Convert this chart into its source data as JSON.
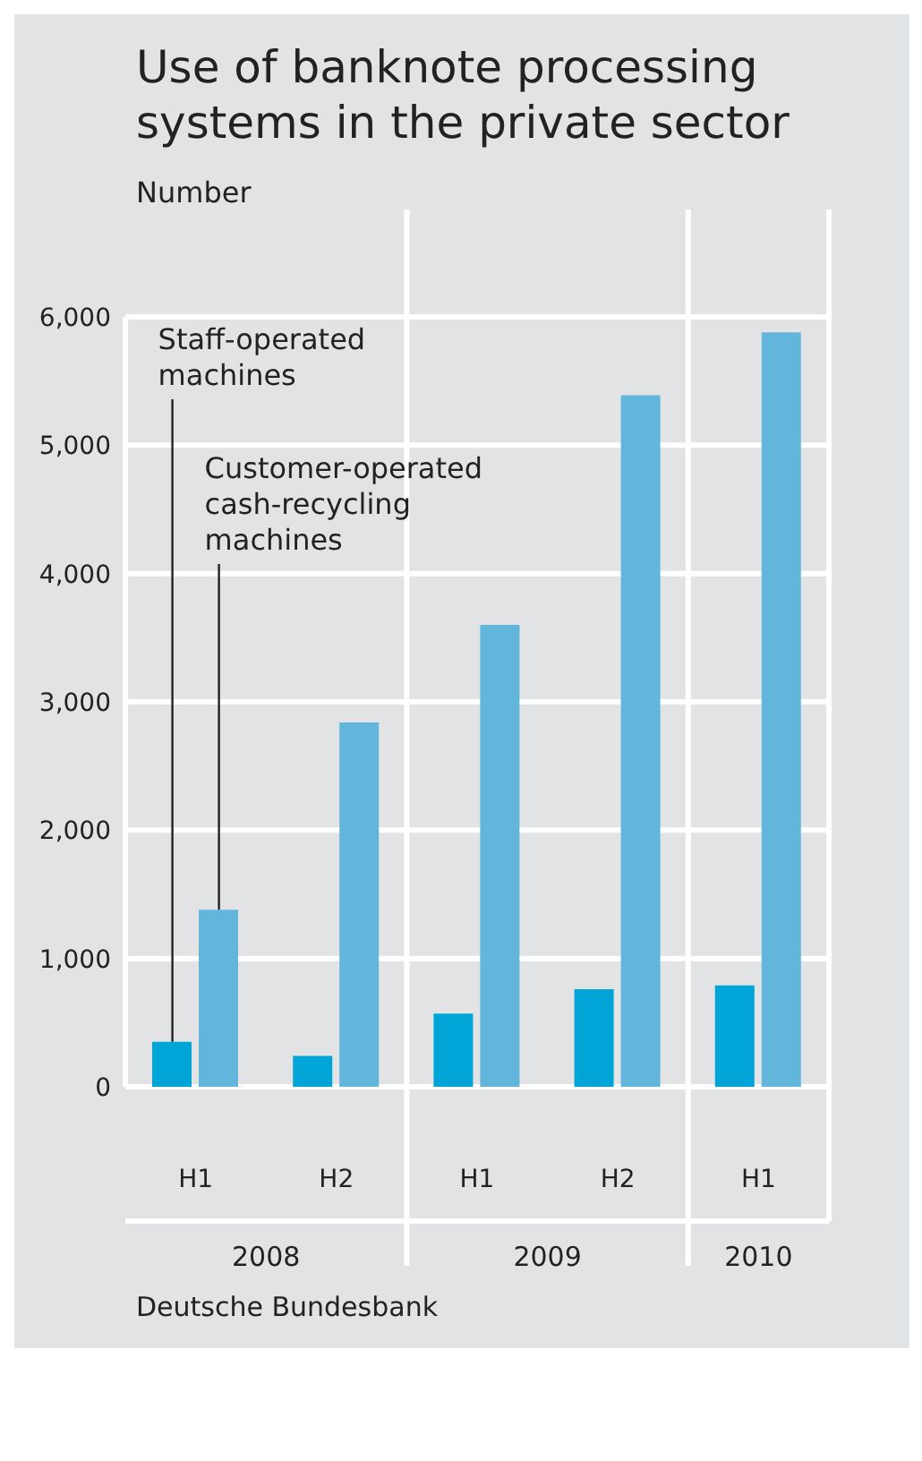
{
  "chart_data": {
    "type": "bar",
    "title": "Use of banknote processing systems in the private sector",
    "ylabel": "Number",
    "categories": [
      "H1",
      "H2",
      "H1",
      "H2",
      "H1"
    ],
    "series": [
      {
        "name": "Staff-operated machines",
        "color": "#00a5d7",
        "values": [
          350,
          240,
          570,
          760,
          790
        ]
      },
      {
        "name": "Customer-operated cash-recycling machines",
        "color": "#62b6dc",
        "values": [
          1380,
          2840,
          3600,
          5390,
          5880
        ]
      }
    ],
    "ylim": [
      0,
      6000
    ],
    "yticks": [
      0,
      {
        "value": 1000,
        "label": "1,000"
      },
      {
        "value": 2000,
        "label": "2,000"
      },
      {
        "value": 3000,
        "label": "3,000"
      },
      {
        "value": 4000,
        "label": "4,000"
      },
      {
        "value": 5000,
        "label": "5,000"
      },
      {
        "value": 6000,
        "label": "6,000"
      }
    ],
    "grid": "y",
    "annotations": [
      "2008",
      "2009",
      "2010",
      "Deutsche Bundesbank"
    ]
  }
}
